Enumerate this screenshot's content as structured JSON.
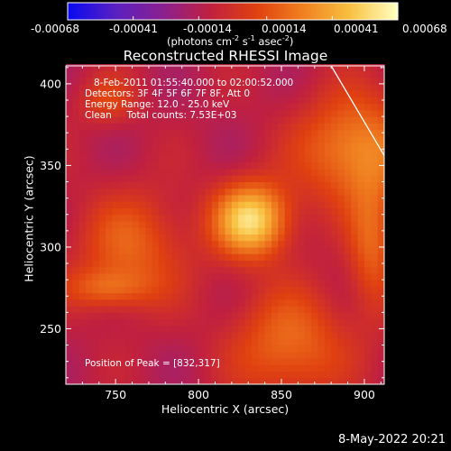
{
  "colorbar": {
    "ticks": [
      "-0.00068",
      "-0.00041",
      "-0.00014",
      "0.00014",
      "0.00041",
      "0.00068"
    ],
    "units": "(photons cm",
    "units_sup1": "-2",
    "units_mid": " s",
    "units_sup2": "-1",
    "units_mid2": " asec",
    "units_sup3": "-2",
    "units_end": ")"
  },
  "overlay": {
    "line1": "8-Feb-2011 01:55:40.000 to 02:00:52.000",
    "line2": "Detectors: 3F 4F 5F 6F 7F 8F, Att 0",
    "line3": "Energy Range: 12.0 - 25.0 keV",
    "line4": "Clean     Total counts: 7.53E+03",
    "peak": "Position of Peak = [832,317]"
  },
  "footer_date": "8-May-2022 20:21",
  "chart_data": {
    "type": "heatmap",
    "title": "Reconstructed RHESSI Image",
    "xlabel": "Heliocentric X (arcsec)",
    "ylabel": "Heliocentric Y (arcsec)",
    "xlim": [
      720,
      912
    ],
    "ylim": [
      216,
      411
    ],
    "xticks": [
      750,
      800,
      850,
      900
    ],
    "yticks": [
      250,
      300,
      350,
      400
    ],
    "colorbar_range": [
      -0.00068,
      0.00068
    ],
    "colormap": [
      "#0a0af0",
      "#5a20c0",
      "#8a2090",
      "#c02040",
      "#e04010",
      "#f08020",
      "#f8c040",
      "#ffffc0"
    ],
    "peak_position": [
      832,
      317
    ],
    "sources": [
      {
        "x": 832,
        "y": 317,
        "intensity": 0.00068
      },
      {
        "x": 895,
        "y": 360,
        "intensity": 0.00045
      },
      {
        "x": 855,
        "y": 240,
        "intensity": 0.00035
      },
      {
        "x": 760,
        "y": 300,
        "intensity": 0.0003
      }
    ],
    "limb_line": [
      [
        880,
        411
      ],
      [
        912,
        356
      ]
    ]
  }
}
